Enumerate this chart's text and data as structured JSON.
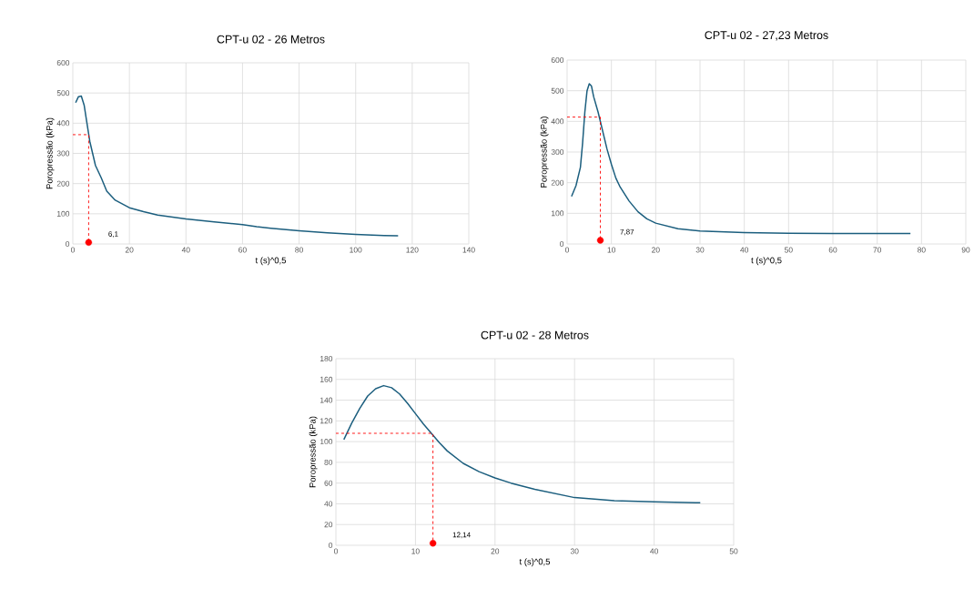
{
  "chart_data": [
    {
      "type": "line",
      "title": "CPT-u 02 - 26 Metros",
      "xlabel": "t (s)^0,5",
      "ylabel": "Poropressão (kPa)",
      "xlim": [
        0,
        140
      ],
      "ylim": [
        0,
        600
      ],
      "xticks": [
        0,
        20,
        40,
        60,
        80,
        100,
        120,
        140
      ],
      "yticks": [
        0,
        100,
        200,
        300,
        400,
        500,
        600
      ],
      "grid": true,
      "series": [
        {
          "color": "#1b5e7e",
          "x": [
            1,
            2,
            3,
            4,
            5,
            6,
            7,
            8,
            10,
            12,
            15,
            20,
            25,
            30,
            40,
            50,
            60,
            65,
            70,
            80,
            90,
            100,
            110,
            115
          ],
          "values": [
            468,
            488,
            490,
            460,
            400,
            340,
            300,
            260,
            220,
            175,
            145,
            120,
            107,
            96,
            83,
            73,
            64,
            57,
            52,
            44,
            37,
            32,
            28,
            27
          ]
        },
        {
          "type": "line",
          "color": "#ff0000",
          "line_style": "dashed",
          "x": [
            0,
            5.6,
            5.6
          ],
          "values": [
            362,
            362,
            5
          ]
        },
        {
          "type": "scatter",
          "color": "#ff0000",
          "marker": "circle",
          "x": [
            5.6
          ],
          "values": [
            5
          ]
        }
      ],
      "annotations": [
        {
          "text": "6,1",
          "x": 5.6,
          "y": 5
        }
      ]
    },
    {
      "type": "line",
      "title": "CPT-u 02 - 27,23 Metros",
      "xlabel": "t (s)^0,5",
      "ylabel": "Poropressão (kPa)",
      "xlim": [
        0,
        90
      ],
      "ylim": [
        0,
        600
      ],
      "xticks": [
        0,
        10,
        20,
        30,
        40,
        50,
        60,
        70,
        80,
        90
      ],
      "yticks": [
        0,
        100,
        200,
        300,
        400,
        500,
        600
      ],
      "grid": true,
      "series": [
        {
          "color": "#1b5e7e",
          "x": [
            1,
            2,
            3,
            3.5,
            4,
            4.5,
            5,
            5.5,
            6,
            7,
            8,
            9,
            10,
            11,
            12,
            14,
            16,
            18,
            20,
            25,
            30,
            40,
            50,
            60,
            70,
            77.5
          ],
          "values": [
            155,
            190,
            250,
            330,
            430,
            500,
            523,
            515,
            480,
            430,
            370,
            310,
            260,
            215,
            185,
            140,
            105,
            82,
            68,
            50,
            42,
            37,
            35,
            34,
            34,
            34
          ]
        },
        {
          "type": "line",
          "color": "#ff0000",
          "line_style": "dashed",
          "x": [
            0,
            7.5,
            7.5
          ],
          "values": [
            414,
            414,
            12
          ]
        },
        {
          "type": "scatter",
          "color": "#ff0000",
          "marker": "circle",
          "x": [
            7.5
          ],
          "values": [
            12
          ]
        }
      ],
      "annotations": [
        {
          "text": "7,87",
          "x": 7.5,
          "y": 12
        }
      ]
    },
    {
      "type": "line",
      "title": "CPT-u 02 - 28 Metros",
      "xlabel": "t (s)^0,5",
      "ylabel": "Poropressão (kPa)",
      "xlim": [
        0,
        50
      ],
      "ylim": [
        0,
        180
      ],
      "xticks": [
        0,
        10,
        20,
        30,
        40,
        50
      ],
      "yticks": [
        0,
        20,
        40,
        60,
        80,
        100,
        120,
        140,
        160,
        180
      ],
      "grid": true,
      "series": [
        {
          "color": "#1b5e7e",
          "x": [
            1,
            2,
            3,
            4,
            5,
            6,
            7,
            8,
            9,
            10,
            11,
            12,
            13,
            14,
            16,
            18,
            20,
            22,
            25,
            30,
            35,
            40,
            45.8
          ],
          "values": [
            102,
            118,
            132,
            144,
            151,
            154,
            152,
            146,
            137,
            127,
            117,
            108,
            99,
            91,
            79,
            71,
            65,
            60,
            54,
            46,
            43,
            42,
            41
          ]
        },
        {
          "type": "line",
          "color": "#ff0000",
          "line_style": "dashed",
          "x": [
            0,
            12.2,
            12.2
          ],
          "values": [
            108,
            108,
            2
          ]
        },
        {
          "type": "scatter",
          "color": "#ff0000",
          "marker": "circle",
          "x": [
            12.2
          ],
          "values": [
            2
          ]
        }
      ],
      "annotations": [
        {
          "text": "12,14",
          "x": 12.2,
          "y": 2
        }
      ]
    }
  ]
}
